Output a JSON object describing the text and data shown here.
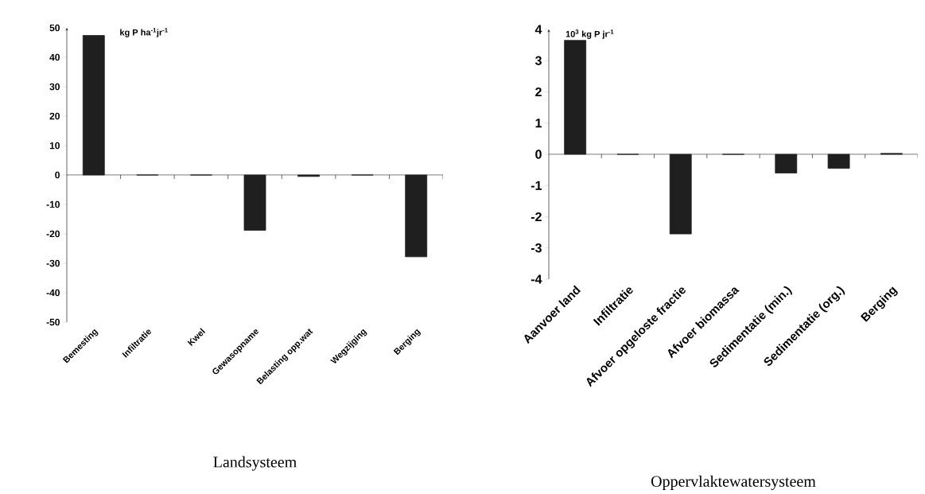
{
  "chart_data": [
    {
      "type": "bar",
      "categories": [
        "Bemesting",
        "Infiltratie",
        "Kwel",
        "Gewasopname",
        "Belasting opp.wat",
        "Wegzijging",
        "Berging"
      ],
      "values": [
        47.4,
        0,
        0,
        -18.8,
        -0.5,
        0,
        -27.8
      ],
      "color": "#1f1f1f",
      "ylim": [
        -50,
        50
      ],
      "yticks": [
        -50,
        -40,
        -30,
        -20,
        -10,
        0,
        10,
        20,
        30,
        40,
        50
      ],
      "xlabel": "Landsysteem",
      "annotations": [
        "kg P ha$^{-1}$jr$^{-1}$"
      ]
    },
    {
      "type": "bar",
      "categories": [
        "Aanvoer land",
        "Infiltratie",
        "Afvoer opgeloste fractie",
        "Afvoer biomassa",
        "Sedimentatie (min.)",
        "Sedimentatie (org.)",
        "Berging"
      ],
      "values": [
        3.65,
        0,
        -2.55,
        0,
        -0.6,
        -0.45,
        0.03
      ],
      "color": "#1f1f1f",
      "ylim": [
        -4,
        4
      ],
      "yticks": [
        -4,
        -3,
        -2,
        -1,
        0,
        1,
        2,
        3,
        4
      ],
      "xlabel": "Oppervlaktewatersysteem",
      "annotations": [
        "10$^{3}$ kg P jr$^{-1}$"
      ]
    }
  ]
}
